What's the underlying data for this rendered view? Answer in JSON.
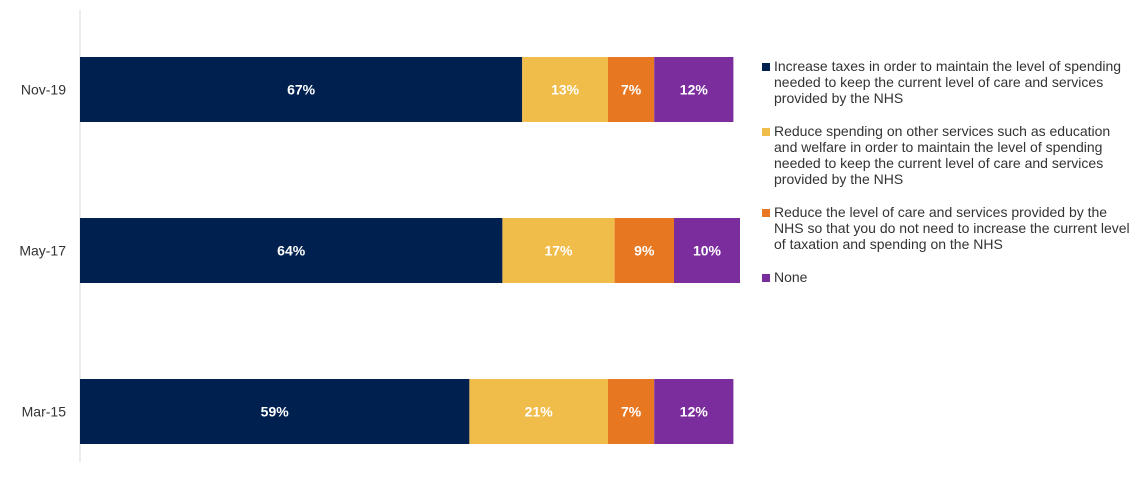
{
  "chart_data": {
    "type": "bar",
    "orientation": "horizontal",
    "stacked": true,
    "categories": [
      "Nov-19",
      "May-17",
      "Mar-15"
    ],
    "series": [
      {
        "name": "Increase taxes in order to maintain the level of spending needed to keep the current level of care and services provided by the NHS",
        "color": "#00204f",
        "label_color": "#ffffff",
        "values": [
          67,
          64,
          59
        ]
      },
      {
        "name": "Reduce spending on other services such as education and welfare in order to maintain the level of spending needed to keep the current level of care and services provided by the NHS",
        "color": "#f0bc4a",
        "label_color": "#ffffff",
        "values": [
          13,
          17,
          21
        ]
      },
      {
        "name": "Reduce the level of care and services provided by the NHS so that you do not need to increase the current level of taxation and spending on the NHS",
        "color": "#e87722",
        "label_color": "#ffffff",
        "values": [
          7,
          9,
          7
        ]
      },
      {
        "name": "None",
        "color": "#7b2d9e",
        "label_color": "#ffffff",
        "values": [
          12,
          10,
          12
        ]
      }
    ],
    "value_suffix": "%",
    "xlim": [
      0,
      100
    ],
    "grid": false,
    "legend_position": "right"
  }
}
